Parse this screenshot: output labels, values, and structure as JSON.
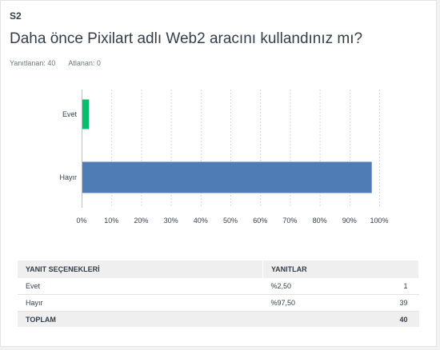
{
  "question": {
    "number": "S2",
    "title": "Daha önce Pixilart adlı Web2 aracını kullandınız mı?",
    "answered": "Yanıtlanan: 40",
    "skipped": "Atlanan: 0"
  },
  "chart_data": {
    "type": "bar",
    "orientation": "horizontal",
    "categories": [
      "Evet",
      "Hayır"
    ],
    "values": [
      2.5,
      97.5
    ],
    "colors": [
      "#00bf6f",
      "#507cb6"
    ],
    "xlim": [
      0,
      100
    ],
    "xticks": [
      "0%",
      "10%",
      "20%",
      "30%",
      "40%",
      "50%",
      "60%",
      "70%",
      "80%",
      "90%",
      "100%"
    ],
    "grid": true
  },
  "table": {
    "headers": [
      "YANIT SEÇENEKLERİ",
      "YANITLAR"
    ],
    "rows": [
      {
        "label": "Evet",
        "percent": "%2,50",
        "count": "1"
      },
      {
        "label": "Hayır",
        "percent": "%97,50",
        "count": "39"
      }
    ],
    "total_label": "TOPLAM",
    "total_count": "40"
  }
}
